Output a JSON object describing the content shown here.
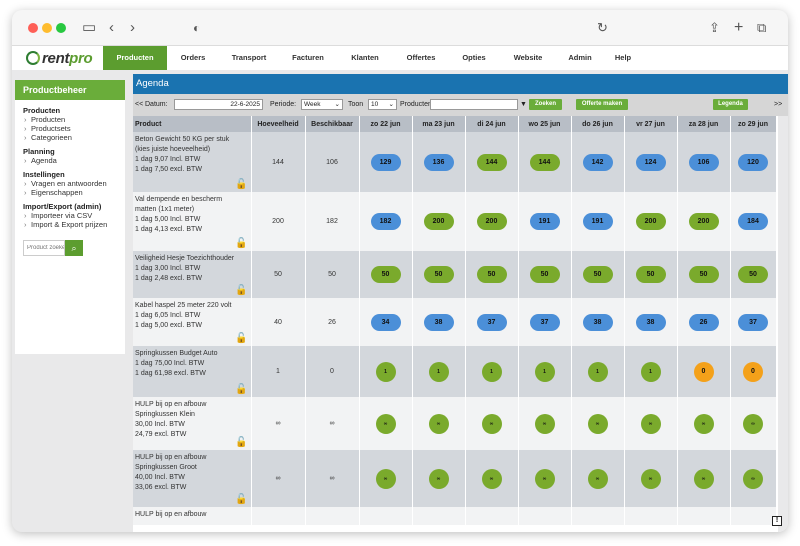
{
  "browser": {
    "icons": {
      "sidebar": "sidebar-toggle-icon",
      "back": "chevron-left-icon",
      "forward": "chevron-right-icon",
      "shield": "shield-icon",
      "reload": "reload-icon",
      "share": "share-icon",
      "new_tab": "plus-icon",
      "tabs": "tabs-icon"
    }
  },
  "brand": {
    "name_part1": "rent",
    "name_part2": "pro"
  },
  "nav": {
    "items": [
      {
        "label": "Producten",
        "active": true
      },
      {
        "label": "Orders",
        "active": false
      },
      {
        "label": "Transport",
        "active": false
      },
      {
        "label": "Facturen",
        "active": false
      },
      {
        "label": "Klanten",
        "active": false
      },
      {
        "label": "Offertes",
        "active": false
      },
      {
        "label": "Opties",
        "active": false
      },
      {
        "label": "Website",
        "active": false
      },
      {
        "label": "Admin",
        "active": false
      },
      {
        "label": "Help",
        "active": false
      }
    ]
  },
  "sidebar": {
    "heading": "Productbeheer",
    "sections": [
      {
        "title": "Producten",
        "links": [
          "Producten",
          "Productsets",
          "Categorieen"
        ]
      },
      {
        "title": "Planning",
        "links": [
          "Agenda"
        ]
      },
      {
        "title": "Instellingen",
        "links": [
          "Vragen en antwoorden",
          "Eigenschappen"
        ]
      },
      {
        "title": "Import/Export (admin)",
        "links": [
          "Importeer via CSV",
          "Import & Export prijzen"
        ]
      }
    ],
    "search_placeholder": "Product zoeken"
  },
  "agenda": {
    "title": "Agenda",
    "toolbar": {
      "prev": "<<",
      "date_label": "Datum:",
      "date_value": "22-6-2025",
      "period_label": "Periode:",
      "period_value": "Week",
      "show_label": "Toon",
      "show_value": "10",
      "products_label": "Producten",
      "products_value": "",
      "search_button": "Zoeken",
      "quote_button": "Offerte maken",
      "legend_button": "Legenda",
      "next": ">>"
    },
    "columns": [
      "Product",
      "Hoeveelheid",
      "Beschikbaar",
      "zo 22 jun",
      "ma 23 jun",
      "di 24 jun",
      "wo 25 jun",
      "do 26 jun",
      "vr 27 jun",
      "za 28 jun",
      "zo 29 jun"
    ],
    "rows": [
      {
        "name": "Beton Gewicht 50 KG per stuk (kies juiste hoeveelheid)",
        "price1": "1 dag 9,07 Incl. BTW",
        "price2": "1 dag 7,50 excl. BTW",
        "qty": "144",
        "avail": "106",
        "days": [
          {
            "v": "129",
            "c": "blue"
          },
          {
            "v": "136",
            "c": "blue"
          },
          {
            "v": "144",
            "c": "green"
          },
          {
            "v": "144",
            "c": "green"
          },
          {
            "v": "142",
            "c": "blue"
          },
          {
            "v": "124",
            "c": "blue"
          },
          {
            "v": "106",
            "c": "blue"
          },
          {
            "v": "120",
            "c": "blue"
          }
        ]
      },
      {
        "name": "Val dempende en bescherm matten (1x1 meter)",
        "price1": "1 dag 5,00 Incl. BTW",
        "price2": "1 dag 4,13 excl. BTW",
        "qty": "200",
        "avail": "182",
        "days": [
          {
            "v": "182",
            "c": "blue"
          },
          {
            "v": "200",
            "c": "green"
          },
          {
            "v": "200",
            "c": "green"
          },
          {
            "v": "191",
            "c": "blue"
          },
          {
            "v": "191",
            "c": "blue"
          },
          {
            "v": "200",
            "c": "green"
          },
          {
            "v": "200",
            "c": "green"
          },
          {
            "v": "184",
            "c": "blue"
          }
        ]
      },
      {
        "name": "Veiligheid Hesje Toezichthouder",
        "price1": "1 dag 3,00 Incl. BTW",
        "price2": "1 dag 2,48 excl. BTW",
        "qty": "50",
        "avail": "50",
        "days": [
          {
            "v": "50",
            "c": "green"
          },
          {
            "v": "50",
            "c": "green"
          },
          {
            "v": "50",
            "c": "green"
          },
          {
            "v": "50",
            "c": "green"
          },
          {
            "v": "50",
            "c": "green"
          },
          {
            "v": "50",
            "c": "green"
          },
          {
            "v": "50",
            "c": "green"
          },
          {
            "v": "50",
            "c": "green"
          }
        ]
      },
      {
        "name": "Kabel haspel 25 meter 220 volt",
        "price1": "1 dag 6,05 Incl. BTW",
        "price2": "1 dag 5,00 excl. BTW",
        "qty": "40",
        "avail": "26",
        "days": [
          {
            "v": "34",
            "c": "blue"
          },
          {
            "v": "38",
            "c": "blue"
          },
          {
            "v": "37",
            "c": "blue"
          },
          {
            "v": "37",
            "c": "blue"
          },
          {
            "v": "38",
            "c": "blue"
          },
          {
            "v": "38",
            "c": "blue"
          },
          {
            "v": "26",
            "c": "blue"
          },
          {
            "v": "37",
            "c": "blue"
          }
        ]
      },
      {
        "name": "Springkussen Budget Auto",
        "price1": "1 dag 75,00 Incl. BTW",
        "price2": "1 dag 61,98 excl. BTW",
        "qty": "1",
        "avail": "0",
        "days": [
          {
            "v": "1",
            "c": "circle"
          },
          {
            "v": "1",
            "c": "circle"
          },
          {
            "v": "1",
            "c": "circle"
          },
          {
            "v": "1",
            "c": "circle"
          },
          {
            "v": "1",
            "c": "circle"
          },
          {
            "v": "1",
            "c": "circle"
          },
          {
            "v": "0",
            "c": "orange"
          },
          {
            "v": "0",
            "c": "orange"
          }
        ]
      },
      {
        "name": "HULP bij op en afbouw Springkussen Klein",
        "price1": "30,00 Incl. BTW",
        "price2": "24,79 excl. BTW",
        "qty": "∞",
        "avail": "∞",
        "days": [
          {
            "v": "∞",
            "c": "circle"
          },
          {
            "v": "∞",
            "c": "circle"
          },
          {
            "v": "∞",
            "c": "circle"
          },
          {
            "v": "∞",
            "c": "circle"
          },
          {
            "v": "∞",
            "c": "circle"
          },
          {
            "v": "∞",
            "c": "circle"
          },
          {
            "v": "∞",
            "c": "circle"
          },
          {
            "v": "∞",
            "c": "circle"
          }
        ]
      },
      {
        "name": "HULP bij op en afbouw Springkussen Groot",
        "price1": "40,00 Incl. BTW",
        "price2": "33,06 excl. BTW",
        "qty": "∞",
        "avail": "∞",
        "days": [
          {
            "v": "∞",
            "c": "circle"
          },
          {
            "v": "∞",
            "c": "circle"
          },
          {
            "v": "∞",
            "c": "circle"
          },
          {
            "v": "∞",
            "c": "circle"
          },
          {
            "v": "∞",
            "c": "circle"
          },
          {
            "v": "∞",
            "c": "circle"
          },
          {
            "v": "∞",
            "c": "circle"
          },
          {
            "v": "∞",
            "c": "circle"
          }
        ]
      },
      {
        "name": "HULP bij op en afbouw",
        "price1": "",
        "price2": "",
        "qty": "",
        "avail": "",
        "days": []
      }
    ]
  },
  "colors": {
    "brand_green": "#5c9d2f",
    "agenda_blue": "#1a73b0",
    "pill_blue": "#4b8fd8",
    "pill_green": "#7aaa2c",
    "pill_orange": "#f4a11a"
  },
  "feedback": {
    "icon": "exclamation-icon",
    "label": "!"
  }
}
